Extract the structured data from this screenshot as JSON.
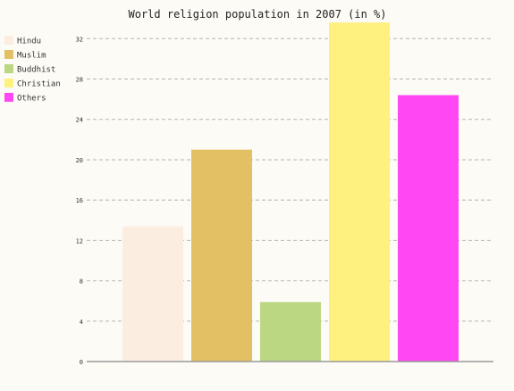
{
  "chart_data": {
    "type": "bar",
    "title": "World religion population in 2007 (in %)",
    "xlabel": "",
    "ylabel": "",
    "ylim": [
      0,
      33
    ],
    "yticks": [
      0,
      4,
      8,
      12,
      16,
      20,
      24,
      28,
      32
    ],
    "grid": true,
    "legend_position": "top-left",
    "series": [
      {
        "name": "Hindu",
        "value": 13.4,
        "color": "#fbeee0"
      },
      {
        "name": "Muslim",
        "value": 21.0,
        "color": "#e3c063"
      },
      {
        "name": "Buddhist",
        "value": 5.9,
        "color": "#bbd782"
      },
      {
        "name": "Christian",
        "value": 33.6,
        "color": "#fff17f"
      },
      {
        "name": "Others",
        "value": 26.4,
        "color": "#ff47f4"
      }
    ]
  }
}
